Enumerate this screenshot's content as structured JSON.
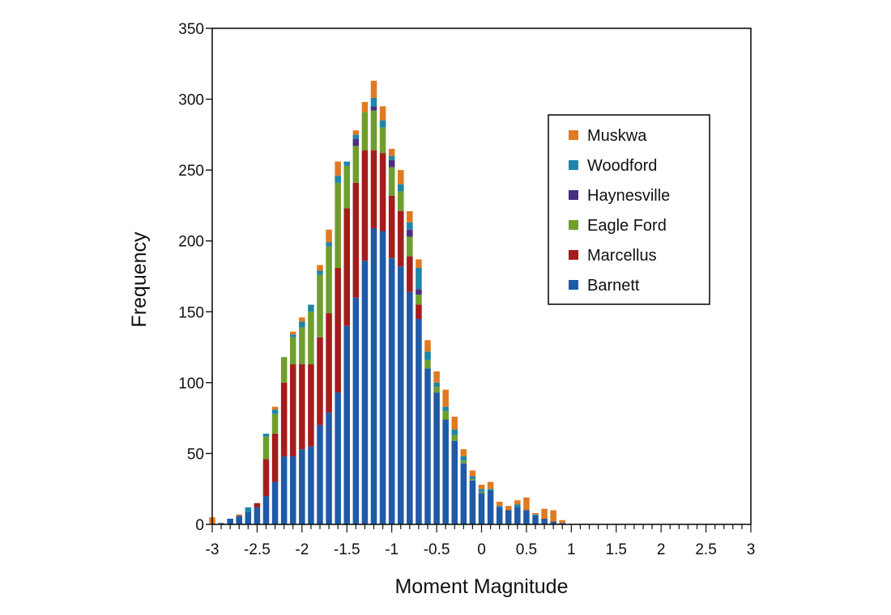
{
  "chart_data": {
    "type": "bar",
    "stacked": true,
    "xlabel": "Moment Magnitude",
    "ylabel": "Frequency",
    "xlim": [
      -3,
      3
    ],
    "ylim": [
      0,
      350
    ],
    "bin_width": 0.1,
    "xticks": [
      -3,
      -2.5,
      -2,
      -1.5,
      -1,
      -0.5,
      0,
      0.5,
      1,
      1.5,
      2,
      2.5,
      3
    ],
    "xtick_labels": [
      "-3",
      "-2.5",
      "-2",
      "-1.5",
      "-1",
      "-0.5",
      "0",
      "0.5",
      "1",
      "1.5",
      "2",
      "2.5",
      "3"
    ],
    "yticks": [
      0,
      50,
      100,
      150,
      200,
      250,
      300,
      350
    ],
    "ytick_labels": [
      "0",
      "50",
      "100",
      "150",
      "200",
      "250",
      "300",
      "350"
    ],
    "legend_position": "top-right",
    "grid": false,
    "x": [
      -3.0,
      -2.9,
      -2.8,
      -2.7,
      -2.6,
      -2.5,
      -2.4,
      -2.3,
      -2.2,
      -2.1,
      -2.0,
      -1.9,
      -1.8,
      -1.7,
      -1.6,
      -1.5,
      -1.4,
      -1.3,
      -1.2,
      -1.1,
      -1.0,
      -0.9,
      -0.8,
      -0.7,
      -0.6,
      -0.5,
      -0.4,
      -0.3,
      -0.2,
      -0.1,
      0.0,
      0.1,
      0.2,
      0.3,
      0.4,
      0.5,
      0.6,
      0.7,
      0.8,
      0.9
    ],
    "series": [
      {
        "name": "Barnett",
        "color": "#1f5aa6",
        "values": [
          0,
          1,
          4,
          6,
          9,
          12,
          20,
          30,
          48,
          48,
          53,
          55,
          70,
          79,
          93,
          140,
          160,
          186,
          209,
          207,
          188,
          182,
          164,
          145,
          110,
          93,
          74,
          59,
          43,
          31,
          22,
          24,
          12,
          10,
          12,
          10,
          6,
          4,
          2,
          1
        ]
      },
      {
        "name": "Marcellus",
        "color": "#a51c1c",
        "values": [
          0,
          0,
          0,
          0,
          0,
          3,
          26,
          34,
          52,
          65,
          60,
          58,
          62,
          70,
          88,
          83,
          81,
          78,
          55,
          55,
          44,
          39,
          25,
          10,
          0,
          0,
          0,
          0,
          0,
          0,
          0,
          0,
          0,
          0,
          0,
          0,
          0,
          0,
          0,
          0
        ]
      },
      {
        "name": "Eagle Ford",
        "color": "#6f9e2e",
        "values": [
          0,
          0,
          0,
          0,
          0,
          0,
          16,
          14,
          18,
          19,
          26,
          37,
          44,
          47,
          60,
          30,
          26,
          27,
          28,
          18,
          20,
          14,
          14,
          7,
          6,
          4,
          6,
          4,
          2,
          1,
          1,
          0,
          0,
          0,
          0,
          0,
          0,
          0,
          0,
          0
        ]
      },
      {
        "name": "Haynesville",
        "color": "#4b2e83",
        "values": [
          0,
          0,
          0,
          0,
          0,
          0,
          0,
          0,
          0,
          0,
          0,
          0,
          0,
          0,
          0,
          0,
          5,
          0,
          3,
          0,
          5,
          0,
          5,
          4,
          0,
          0,
          0,
          0,
          0,
          0,
          0,
          0,
          0,
          0,
          0,
          0,
          0,
          0,
          0,
          0
        ]
      },
      {
        "name": "Woodford",
        "color": "#1e86a8",
        "values": [
          0,
          0,
          0,
          0,
          3,
          0,
          2,
          3,
          0,
          2,
          4,
          5,
          3,
          3,
          5,
          3,
          3,
          0,
          6,
          5,
          3,
          5,
          5,
          15,
          6,
          3,
          3,
          4,
          3,
          2,
          2,
          1,
          1,
          0,
          2,
          0,
          1,
          0,
          0,
          0
        ]
      },
      {
        "name": "Muskwa",
        "color": "#e07a22",
        "values": [
          5,
          0,
          0,
          1,
          0,
          0,
          0,
          2,
          0,
          2,
          3,
          0,
          4,
          9,
          10,
          0,
          3,
          7,
          12,
          10,
          5,
          10,
          8,
          6,
          8,
          8,
          12,
          9,
          5,
          4,
          3,
          5,
          3,
          3,
          3,
          9,
          1,
          7,
          8,
          2
        ]
      }
    ]
  }
}
